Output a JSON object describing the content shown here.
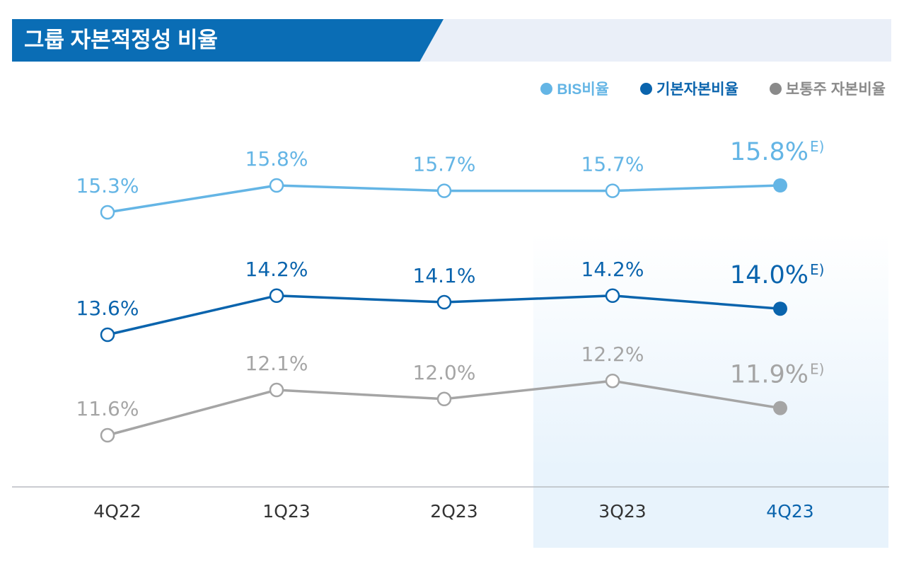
{
  "title": "그룹 자본적정성 비율",
  "colors": {
    "bis": "#64b5e5",
    "tier1": "#0a64ad",
    "cet1": "#a5a5a5",
    "header": "#0a6db5",
    "highlight": "#e8f3fc"
  },
  "chart_data": {
    "type": "line",
    "title": "그룹 자본적정성 비율",
    "categories": [
      "4Q22",
      "1Q23",
      "2Q23",
      "3Q23",
      "4Q23"
    ],
    "highlighted_categories": [
      "3Q23",
      "4Q23"
    ],
    "legend_position": "top-right",
    "grid": false,
    "series": [
      {
        "name": "BIS비율",
        "key": "bis",
        "values": [
          15.3,
          15.8,
          15.7,
          15.7,
          15.8
        ],
        "labels": [
          "15.3%",
          "15.8%",
          "15.7%",
          "15.7%",
          "15.8%"
        ]
      },
      {
        "name": "기본자본비율",
        "key": "tier1",
        "values": [
          13.6,
          14.2,
          14.1,
          14.2,
          14.0
        ],
        "labels": [
          "13.6%",
          "14.2%",
          "14.1%",
          "14.2%",
          "14.0%"
        ]
      },
      {
        "name": "보통주 자본비율",
        "key": "cet1",
        "values": [
          11.6,
          12.1,
          12.0,
          12.2,
          11.9
        ],
        "labels": [
          "11.6%",
          "12.1%",
          "12.0%",
          "12.2%",
          "11.9%"
        ]
      }
    ],
    "estimate_marker": "E)",
    "note": "last point is an estimate"
  }
}
